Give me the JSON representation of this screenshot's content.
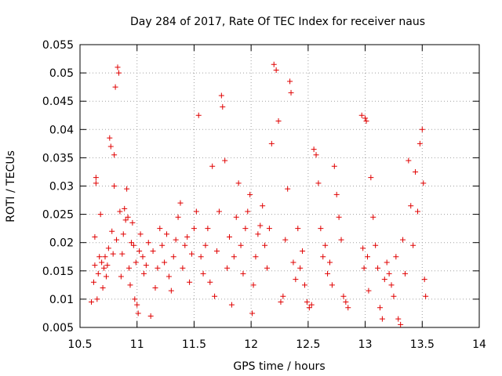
{
  "chart_data": {
    "type": "scatter",
    "title": "Day 284 of 2017, Rate Of TEC Index for receiver naus",
    "xlabel": "GPS time / hours",
    "ylabel": "ROTI / TECUs",
    "xlim": [
      10.5,
      14
    ],
    "ylim": [
      0.005,
      0.055
    ],
    "xticks": [
      10.5,
      11,
      11.5,
      12,
      12.5,
      13,
      13.5,
      14
    ],
    "xtick_labels": [
      "10.5",
      "11",
      "11.5",
      "12",
      "12.5",
      "13",
      "13.5",
      "14"
    ],
    "yticks": [
      0.005,
      0.01,
      0.015,
      0.02,
      0.025,
      0.03,
      0.035,
      0.04,
      0.045,
      0.05,
      0.055
    ],
    "ytick_labels": [
      "0.005",
      "0.01",
      "0.015",
      "0.02",
      "0.025",
      "0.03",
      "0.035",
      "0.04",
      "0.045",
      "0.05",
      "0.055"
    ],
    "grid": true,
    "marker": "+",
    "color": "#e00000",
    "series": [
      {
        "name": "ROTI",
        "points": [
          [
            10.6,
            0.0095
          ],
          [
            10.62,
            0.013
          ],
          [
            10.63,
            0.016
          ],
          [
            10.63,
            0.021
          ],
          [
            10.64,
            0.0305
          ],
          [
            10.64,
            0.0315
          ],
          [
            10.65,
            0.01
          ],
          [
            10.66,
            0.0145
          ],
          [
            10.67,
            0.0175
          ],
          [
            10.68,
            0.025
          ],
          [
            10.69,
            0.0165
          ],
          [
            10.7,
            0.012
          ],
          [
            10.71,
            0.0155
          ],
          [
            10.72,
            0.0175
          ],
          [
            10.73,
            0.014
          ],
          [
            10.74,
            0.016
          ],
          [
            10.75,
            0.019
          ],
          [
            10.76,
            0.0385
          ],
          [
            10.77,
            0.037
          ],
          [
            10.78,
            0.022
          ],
          [
            10.79,
            0.018
          ],
          [
            10.8,
            0.03
          ],
          [
            10.8,
            0.0355
          ],
          [
            10.81,
            0.0475
          ],
          [
            10.82,
            0.0205
          ],
          [
            10.83,
            0.051
          ],
          [
            10.84,
            0.05
          ],
          [
            10.85,
            0.0255
          ],
          [
            10.86,
            0.014
          ],
          [
            10.87,
            0.018
          ],
          [
            10.88,
            0.0215
          ],
          [
            10.89,
            0.026
          ],
          [
            10.9,
            0.024
          ],
          [
            10.91,
            0.0295
          ],
          [
            10.92,
            0.0245
          ],
          [
            10.93,
            0.0155
          ],
          [
            10.94,
            0.0125
          ],
          [
            10.95,
            0.02
          ],
          [
            10.96,
            0.0235
          ],
          [
            10.97,
            0.0195
          ],
          [
            10.98,
            0.01
          ],
          [
            10.99,
            0.0165
          ],
          [
            11.0,
            0.009
          ],
          [
            11.01,
            0.0075
          ],
          [
            11.02,
            0.0185
          ],
          [
            11.03,
            0.0215
          ],
          [
            11.05,
            0.0175
          ],
          [
            11.06,
            0.0145
          ],
          [
            11.08,
            0.016
          ],
          [
            11.1,
            0.02
          ],
          [
            11.12,
            0.007
          ],
          [
            11.14,
            0.0185
          ],
          [
            11.16,
            0.012
          ],
          [
            11.18,
            0.0155
          ],
          [
            11.2,
            0.0225
          ],
          [
            11.22,
            0.0195
          ],
          [
            11.24,
            0.0165
          ],
          [
            11.26,
            0.0215
          ],
          [
            11.28,
            0.014
          ],
          [
            11.3,
            0.0115
          ],
          [
            11.32,
            0.0175
          ],
          [
            11.34,
            0.0205
          ],
          [
            11.36,
            0.0245
          ],
          [
            11.38,
            0.027
          ],
          [
            11.4,
            0.0155
          ],
          [
            11.42,
            0.0195
          ],
          [
            11.44,
            0.021
          ],
          [
            11.46,
            0.013
          ],
          [
            11.48,
            0.018
          ],
          [
            11.5,
            0.0225
          ],
          [
            11.52,
            0.0255
          ],
          [
            11.54,
            0.0425
          ],
          [
            11.56,
            0.0175
          ],
          [
            11.58,
            0.0145
          ],
          [
            11.6,
            0.0195
          ],
          [
            11.62,
            0.0225
          ],
          [
            11.64,
            0.013
          ],
          [
            11.66,
            0.0335
          ],
          [
            11.68,
            0.0105
          ],
          [
            11.7,
            0.0185
          ],
          [
            11.72,
            0.0255
          ],
          [
            11.74,
            0.046
          ],
          [
            11.75,
            0.044
          ],
          [
            11.77,
            0.0345
          ],
          [
            11.79,
            0.0155
          ],
          [
            11.81,
            0.021
          ],
          [
            11.83,
            0.009
          ],
          [
            11.85,
            0.0175
          ],
          [
            11.87,
            0.0245
          ],
          [
            11.89,
            0.0305
          ],
          [
            11.91,
            0.0195
          ],
          [
            11.93,
            0.0145
          ],
          [
            11.95,
            0.0225
          ],
          [
            11.97,
            0.0255
          ],
          [
            11.99,
            0.0285
          ],
          [
            12.01,
            0.0075
          ],
          [
            12.02,
            0.0125
          ],
          [
            12.04,
            0.0175
          ],
          [
            12.06,
            0.0215
          ],
          [
            12.08,
            0.023
          ],
          [
            12.1,
            0.0265
          ],
          [
            12.12,
            0.0195
          ],
          [
            12.14,
            0.0155
          ],
          [
            12.16,
            0.0225
          ],
          [
            12.18,
            0.0375
          ],
          [
            12.2,
            0.0515
          ],
          [
            12.22,
            0.0505
          ],
          [
            12.24,
            0.0415
          ],
          [
            12.26,
            0.0095
          ],
          [
            12.28,
            0.0105
          ],
          [
            12.3,
            0.0205
          ],
          [
            12.32,
            0.0295
          ],
          [
            12.34,
            0.0485
          ],
          [
            12.35,
            0.0465
          ],
          [
            12.37,
            0.0165
          ],
          [
            12.39,
            0.0135
          ],
          [
            12.41,
            0.0225
          ],
          [
            12.43,
            0.0155
          ],
          [
            12.45,
            0.0185
          ],
          [
            12.47,
            0.0125
          ],
          [
            12.49,
            0.0095
          ],
          [
            12.51,
            0.0085
          ],
          [
            12.53,
            0.009
          ],
          [
            12.55,
            0.0365
          ],
          [
            12.57,
            0.0355
          ],
          [
            12.59,
            0.0305
          ],
          [
            12.61,
            0.0225
          ],
          [
            12.63,
            0.0175
          ],
          [
            12.65,
            0.0195
          ],
          [
            12.67,
            0.0145
          ],
          [
            12.69,
            0.0165
          ],
          [
            12.71,
            0.0125
          ],
          [
            12.73,
            0.0335
          ],
          [
            12.75,
            0.0285
          ],
          [
            12.77,
            0.0245
          ],
          [
            12.79,
            0.0205
          ],
          [
            12.81,
            0.0105
          ],
          [
            12.83,
            0.0095
          ],
          [
            12.85,
            0.0085
          ],
          [
            12.97,
            0.0425
          ],
          [
            12.98,
            0.019
          ],
          [
            12.99,
            0.0155
          ],
          [
            13.0,
            0.042
          ],
          [
            13.01,
            0.0415
          ],
          [
            13.02,
            0.0175
          ],
          [
            13.03,
            0.0115
          ],
          [
            13.05,
            0.0315
          ],
          [
            13.07,
            0.0245
          ],
          [
            13.09,
            0.0195
          ],
          [
            13.11,
            0.0155
          ],
          [
            13.13,
            0.0085
          ],
          [
            13.15,
            0.0065
          ],
          [
            13.17,
            0.0135
          ],
          [
            13.19,
            0.0165
          ],
          [
            13.21,
            0.0145
          ],
          [
            13.23,
            0.0125
          ],
          [
            13.25,
            0.0105
          ],
          [
            13.27,
            0.0175
          ],
          [
            13.29,
            0.0065
          ],
          [
            13.31,
            0.0055
          ],
          [
            13.33,
            0.0205
          ],
          [
            13.35,
            0.0145
          ],
          [
            13.38,
            0.0345
          ],
          [
            13.4,
            0.0265
          ],
          [
            13.42,
            0.0195
          ],
          [
            13.44,
            0.0325
          ],
          [
            13.46,
            0.0255
          ],
          [
            13.48,
            0.0375
          ],
          [
            13.5,
            0.04
          ],
          [
            13.51,
            0.0305
          ],
          [
            13.52,
            0.0135
          ],
          [
            13.53,
            0.0105
          ]
        ]
      }
    ]
  }
}
